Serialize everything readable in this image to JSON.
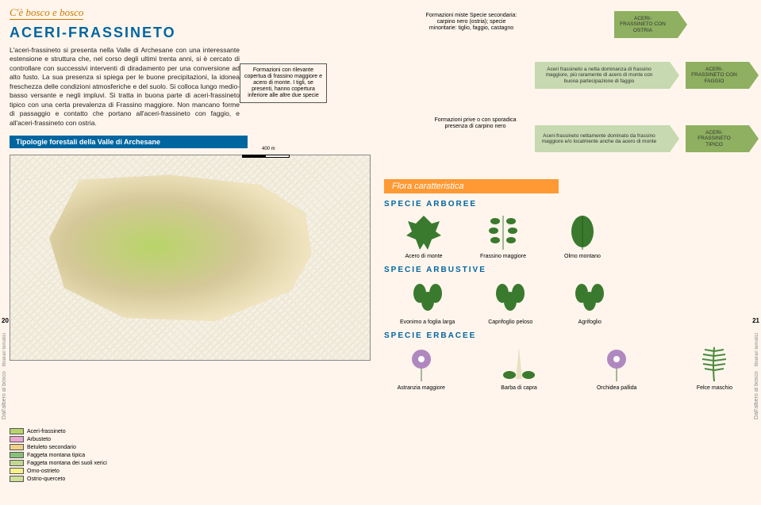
{
  "breadcrumb": "C'è bosco e bosco",
  "title": "ACERI-FRASSINETO",
  "body": "L'aceri-frassineto si presenta nella Valle di Archesane con una interessante estensione e struttura che, nel corso degli ultimi trenta anni, si è cercato di controllare con successivi interventi di diradamento per una conversione ad alto fusto. La sua presenza si spiega per le buone precipitazioni, la idonea freschezza delle condizioni atmosferiche e del suolo. Si colloca lungo medio-basso versante e negli impluvi. Si tratta in buona parte di aceri-frassineto tipico con una certa prevalenza di Frassino maggiore. Non mancano forme di passaggio e contatto che portano all'aceri-frassineto con faggio, e all'aceri-frassineto con ostria.",
  "subtitle": "Tipologie forestali della Valle di Archesane",
  "flow": {
    "start": "Formazioni con rilevante copertua di frassino maggiore e acero di monte. I tigli, se presenti, hanno copertura inferiore alle altre due specie",
    "mid_top": "Formazioni miste\nSpecie secondaria: carpino nero (ostria);\nspecie minoritarie: tiglio, faggio, castagno",
    "mid_bot": "Formazioni prive o con sporadica presenza di carpino nero",
    "arr1": "ACERI-FRASSINETO CON OSTRIA",
    "arr2_pre": "Aceri frassineto a netta dominanza di frassino maggiore, più raramente di acero di monte con buona partecipazione di faggio",
    "arr2": "ACERI-FRASSINETO CON FAGGIO",
    "arr3_pre": "Aceri-frassineto nettamente dominato da frassino maggiore e/o localmente anche da acero di monte",
    "arr3": "ACERI-FRASSINETO TIPICO",
    "scale": "400 m"
  },
  "legend": [
    {
      "c": "#b8d468",
      "t": "Aceri-frassineto"
    },
    {
      "c": "#e8a8d0",
      "t": "Arbusteto"
    },
    {
      "c": "#f0d088",
      "t": "Betuleto secondario"
    },
    {
      "c": "#88c078",
      "t": "Faggeta montana tipica"
    },
    {
      "c": "#c0d890",
      "t": "Faggeta montana dei suoli xerici"
    },
    {
      "c": "#f8f088",
      "t": "Orno-ostrieto"
    },
    {
      "c": "#d0e098",
      "t": "Ostrio-querceto"
    }
  ],
  "flora_title": "Flora caratteristica",
  "sections": {
    "arboree": "SPECIE ARBOREE",
    "arbustive": "SPECIE ARBUSTIVE",
    "erbacee": "SPECIE ERBACEE"
  },
  "species": {
    "arboree": [
      "Acero di monte",
      "Frassino maggiore",
      "Olmo montano"
    ],
    "arbustive": [
      "Evonimo a foglia larga",
      "Caprifoglio peloso",
      "Agrifoglio"
    ],
    "erbacee": [
      "Astranzia maggiore",
      "Barba di capra",
      "Orchidea pallida",
      "Felce maschio"
    ]
  },
  "side_label": "Dall'albero al bosco",
  "side_sub": "Itinerari tematici",
  "pg_left": "20",
  "pg_right": "21",
  "colors": {
    "accent_blue": "#0066a0",
    "accent_orange": "#ff9933",
    "bg": "#fff5ec"
  }
}
